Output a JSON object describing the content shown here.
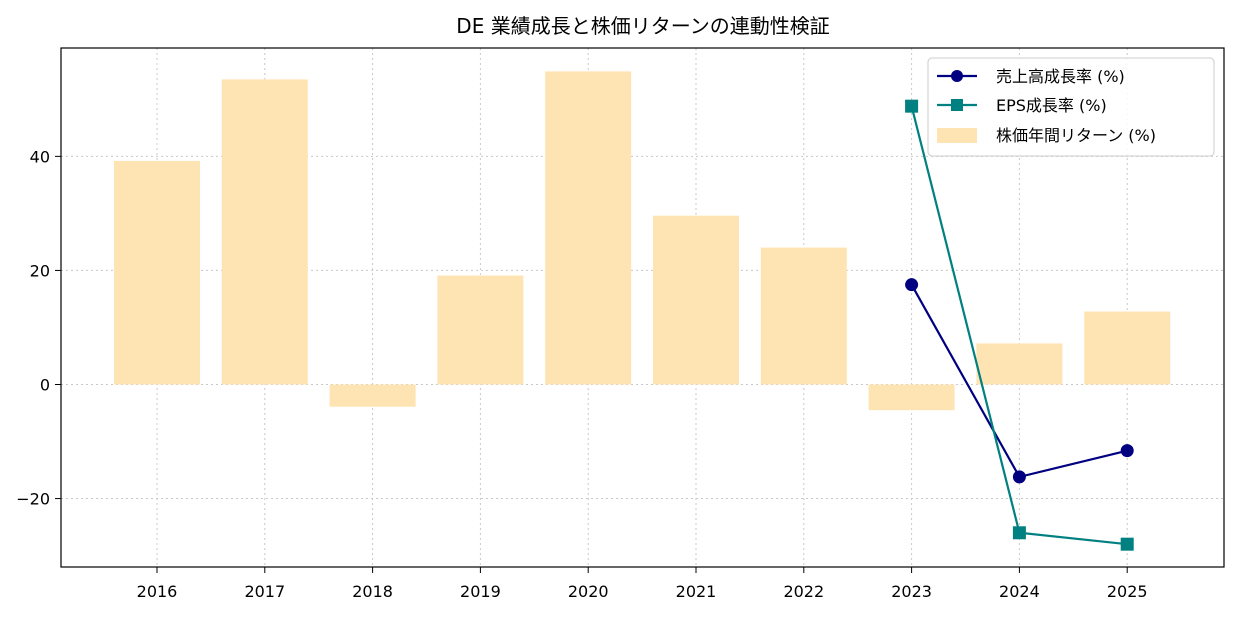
{
  "chart_data": {
    "type": "bar",
    "title": "DE 業績成長と株価リターンの連動性検証",
    "categories": [
      "2016",
      "2017",
      "2018",
      "2019",
      "2020",
      "2021",
      "2022",
      "2023",
      "2024",
      "2025"
    ],
    "ylim": [
      -32,
      59
    ],
    "yticks": [
      -20,
      0,
      20,
      40
    ],
    "ytick_labels": [
      "−20",
      "0",
      "20",
      "40"
    ],
    "grid": true,
    "legend_position": "top-right",
    "series": [
      {
        "name": "株価年間リターン (%)",
        "kind": "bar",
        "color": "#ffe4b3",
        "values": [
          39.2,
          53.5,
          -3.9,
          19.1,
          54.9,
          29.6,
          24.0,
          -4.5,
          7.2,
          12.8
        ]
      },
      {
        "name": "売上高成長率 (%)",
        "kind": "line",
        "marker": "circle",
        "color": "#000080",
        "values": [
          null,
          null,
          null,
          null,
          null,
          null,
          null,
          17.5,
          -16.2,
          -11.6
        ]
      },
      {
        "name": "EPS成長率 (%)",
        "kind": "line",
        "marker": "square",
        "color": "#008080",
        "values": [
          null,
          null,
          null,
          null,
          null,
          null,
          null,
          48.8,
          -26.0,
          -28.0
        ]
      }
    ]
  }
}
